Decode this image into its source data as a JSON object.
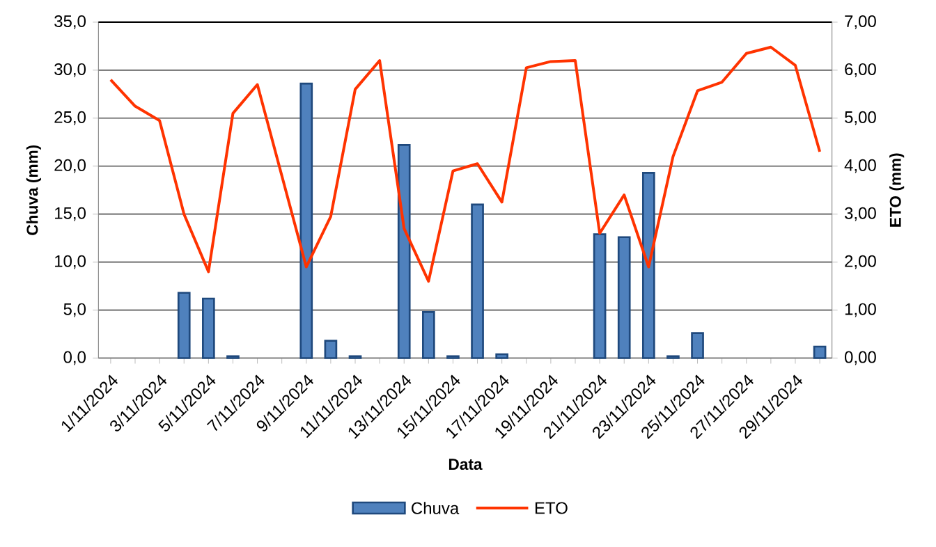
{
  "chart_data": {
    "type": "bar",
    "categories": [
      "1/11/2024",
      null,
      "3/11/2024",
      null,
      "5/11/2024",
      null,
      "7/11/2024",
      null,
      "9/11/2024",
      null,
      "11/11/2024",
      null,
      "13/11/2024",
      null,
      "15/11/2024",
      null,
      "17/11/2024",
      null,
      "19/11/2024",
      null,
      "21/11/2024",
      null,
      "23/11/2024",
      null,
      "25/11/2024",
      null,
      "27/11/2024",
      null,
      "29/11/2024",
      null
    ],
    "series": [
      {
        "name": "Chuva",
        "color": "#4f81bd",
        "values": [
          null,
          null,
          null,
          6.8,
          6.2,
          0.2,
          null,
          null,
          28.6,
          1.8,
          0.2,
          null,
          22.2,
          4.8,
          0.2,
          16.0,
          0.4,
          null,
          null,
          null,
          12.9,
          12.6,
          19.3,
          0.2,
          2.6,
          null,
          null,
          null,
          null,
          1.2
        ]
      },
      {
        "name": "ETO",
        "type": "line",
        "axis": "y2",
        "color": "#ff3300",
        "values": [
          5.8,
          5.25,
          4.95,
          3.0,
          1.8,
          5.1,
          5.7,
          3.8,
          1.9,
          2.95,
          5.6,
          6.2,
          2.7,
          1.6,
          3.9,
          4.05,
          3.25,
          6.05,
          6.18,
          6.2,
          2.6,
          3.4,
          1.9,
          4.2,
          5.57,
          5.75,
          6.35,
          6.48,
          6.1,
          4.3
        ]
      }
    ],
    "xlabel": "Data",
    "ylabel": "Chuva (mm)",
    "y2label": "ETO (mm)",
    "ylim": [
      0,
      35
    ],
    "yticks": [
      {
        "value": 0,
        "label": "0,0"
      },
      {
        "value": 5,
        "label": "5,0"
      },
      {
        "value": 10,
        "label": "10,0"
      },
      {
        "value": 15,
        "label": "15,0"
      },
      {
        "value": 20,
        "label": "20,0"
      },
      {
        "value": 25,
        "label": "25,0"
      },
      {
        "value": 30,
        "label": "30,0"
      },
      {
        "value": 35,
        "label": "35,0"
      }
    ],
    "y2lim": [
      0,
      7
    ],
    "y2ticks": [
      {
        "value": 0,
        "label": "0,00"
      },
      {
        "value": 1,
        "label": "1,00"
      },
      {
        "value": 2,
        "label": "2,00"
      },
      {
        "value": 3,
        "label": "3,00"
      },
      {
        "value": 4,
        "label": "4,00"
      },
      {
        "value": 5,
        "label": "5,00"
      },
      {
        "value": 6,
        "label": "6,00"
      },
      {
        "value": 7,
        "label": "7,00"
      }
    ],
    "grid": "y",
    "legend": "bottom"
  }
}
